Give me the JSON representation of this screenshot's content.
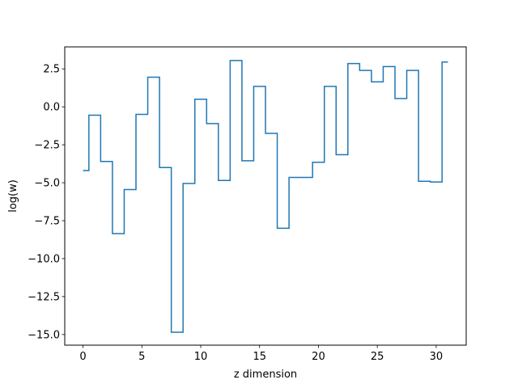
{
  "chart_data": {
    "type": "line",
    "style": "step",
    "title": "",
    "xlabel": "z dimension",
    "ylabel": "log(w)",
    "xlim": [
      -1.55,
      32.55
    ],
    "ylim": [
      -15.7,
      3.95
    ],
    "xticks": [
      0,
      5,
      10,
      15,
      20,
      25,
      30
    ],
    "xtick_labels": [
      "0",
      "5",
      "10",
      "15",
      "20",
      "25",
      "30"
    ],
    "yticks": [
      2.5,
      0.0,
      -2.5,
      -5.0,
      -7.5,
      -10.0,
      -12.5,
      -15.0
    ],
    "ytick_labels": [
      "2.5",
      "0.0",
      "−2.5",
      "−5.0",
      "−7.5",
      "−10.0",
      "−12.5",
      "−15.0"
    ],
    "grid": false,
    "series": [
      {
        "color": "#1f77b4",
        "x": [
          0,
          1,
          2,
          3,
          4,
          5,
          6,
          7,
          8,
          9,
          10,
          11,
          12,
          13,
          14,
          15,
          16,
          17,
          18,
          19,
          20,
          21,
          22,
          23,
          24,
          25,
          26,
          27,
          28,
          29,
          30,
          31
        ],
        "values": [
          -4.2,
          -0.55,
          -3.6,
          -8.35,
          -5.45,
          -0.5,
          1.95,
          -4.0,
          -14.85,
          -5.05,
          0.5,
          -1.1,
          -4.85,
          3.05,
          -3.55,
          1.35,
          -1.75,
          -8.0,
          -4.65,
          -4.65,
          -3.65,
          1.35,
          -3.15,
          2.85,
          2.4,
          1.65,
          2.65,
          0.55,
          2.4,
          -4.9,
          -4.95,
          2.95
        ]
      }
    ]
  }
}
